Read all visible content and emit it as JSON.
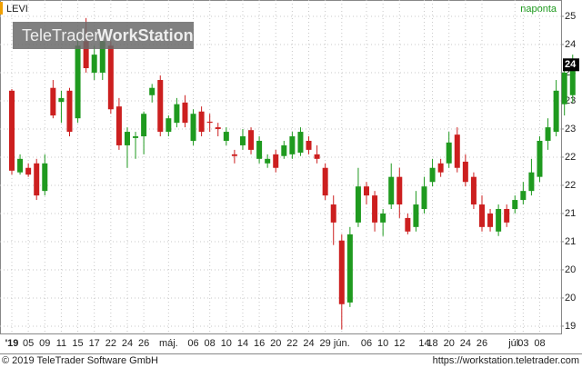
{
  "chart_data": {
    "type": "candlestick",
    "symbol": "LEVI",
    "period": "naponta",
    "watermark": [
      "TeleTrader",
      "WorkStation"
    ],
    "footer_left": "© 2019 TeleTrader Software GmbH",
    "footer_right": "https://workstation.teletrader.com",
    "categories": [
      "'19",
      null,
      "05",
      null,
      "09",
      null,
      "11",
      null,
      "15",
      null,
      "17",
      null,
      "22",
      null,
      "24",
      null,
      "26",
      null,
      null,
      "máj.",
      null,
      null,
      "06",
      null,
      "08",
      null,
      "10",
      null,
      "14",
      null,
      "16",
      null,
      "20",
      null,
      "22",
      null,
      "24",
      null,
      "29",
      null,
      "jún.",
      null,
      null,
      "06",
      null,
      "10",
      null,
      "12",
      null,
      null,
      "14",
      "18",
      null,
      "20",
      null,
      "24",
      null,
      "26",
      null,
      null,
      null,
      "júl.",
      "03",
      null,
      "08",
      null,
      null,
      null,
      null
    ],
    "open": [
      23.43,
      21.98,
      22.06,
      22.14,
      21.65,
      23.48,
      23.23,
      23.43,
      22.94,
      24.31,
      23.75,
      23.75,
      24.23,
      23.15,
      22.46,
      22.59,
      22.62,
      23.35,
      23.62,
      22.7,
      22.86,
      23.22,
      22.54,
      23.06,
      22.88,
      22.78,
      22.54,
      22.3,
      22.46,
      22.73,
      22.22,
      22.14,
      22.3,
      22.27,
      22.3,
      22.33,
      22.54,
      22.3,
      22.06,
      21.41,
      20.77,
      19.67,
      21.09,
      21.73,
      21.57,
      21.09,
      21.41,
      21.9,
      21.17,
      21.01,
      21.33,
      21.81,
      22.14,
      22.14,
      22.65,
      22.17,
      21.9,
      21.41,
      21.25,
      20.93,
      21.33,
      21.33,
      21.49,
      21.65,
      21.9,
      22.54,
      22.7,
      23.19,
      23.35
    ],
    "high": [
      23.46,
      22.3,
      22.14,
      22.22,
      22.3,
      23.62,
      23.43,
      23.48,
      24.4,
      24.72,
      24.23,
      24.4,
      24.31,
      23.3,
      22.78,
      22.7,
      23.06,
      23.55,
      23.7,
      22.99,
      23.3,
      23.35,
      23.1,
      23.15,
      23.02,
      22.86,
      22.78,
      22.38,
      22.75,
      22.78,
      22.62,
      22.3,
      22.38,
      22.54,
      22.7,
      22.78,
      22.62,
      22.46,
      22.14,
      21.57,
      20.88,
      21.01,
      22.06,
      21.81,
      21.65,
      21.33,
      22.14,
      22.06,
      21.25,
      21.65,
      21.9,
      22.22,
      22.22,
      22.7,
      22.78,
      22.3,
      21.98,
      21.57,
      21.33,
      21.41,
      21.41,
      21.57,
      21.81,
      22.22,
      22.62,
      22.94,
      23.62,
      23.83,
      24.07
    ],
    "low": [
      21.94,
      21.94,
      21.9,
      21.49,
      21.57,
      22.94,
      22.86,
      22.62,
      22.86,
      23.75,
      23.62,
      23.62,
      23.02,
      22.38,
      22.06,
      22.22,
      22.3,
      23.22,
      22.62,
      22.62,
      22.78,
      22.78,
      22.46,
      22.62,
      22.7,
      22.62,
      22.46,
      22.14,
      22.38,
      22.3,
      22.14,
      22.06,
      21.98,
      22.22,
      22.22,
      22.27,
      22.3,
      22.14,
      21.49,
      20.69,
      19.19,
      19.59,
      21.01,
      21.41,
      20.93,
      20.85,
      21.33,
      21.17,
      20.88,
      20.93,
      21.25,
      21.73,
      21.9,
      22.06,
      21.98,
      21.73,
      21.33,
      20.93,
      20.93,
      20.85,
      21.01,
      21.25,
      21.41,
      21.57,
      21.81,
      22.38,
      22.62,
      22.99,
      23.22
    ],
    "close": [
      22.01,
      22.22,
      21.94,
      21.57,
      22.14,
      22.99,
      23.3,
      22.7,
      24.23,
      23.83,
      24.07,
      24.31,
      23.1,
      22.46,
      22.7,
      22.62,
      23.02,
      23.48,
      22.7,
      22.94,
      23.19,
      22.86,
      23.02,
      22.7,
      22.86,
      22.75,
      22.7,
      22.27,
      22.62,
      22.38,
      22.54,
      22.22,
      22.06,
      22.46,
      22.62,
      22.7,
      22.38,
      22.22,
      21.57,
      21.09,
      19.64,
      20.88,
      21.73,
      21.57,
      21.09,
      21.25,
      21.9,
      21.41,
      20.93,
      21.41,
      21.73,
      22.06,
      21.98,
      22.51,
      22.06,
      21.81,
      21.41,
      21.01,
      21.01,
      21.33,
      21.09,
      21.49,
      21.65,
      21.98,
      22.54,
      22.78,
      23.43,
      23.75,
      23.89
    ],
    "up_color": "#1f9a1f",
    "down_color": "#cc1f1f",
    "last_price": 23.89,
    "last_price_label": "24",
    "ylim": [
      19.12,
      25.04
    ],
    "yticks": [
      {
        "value": 19.25,
        "label": "19"
      },
      {
        "value": 19.75,
        "label": "20"
      },
      {
        "value": 20.25,
        "label": "20"
      },
      {
        "value": 20.75,
        "label": "21"
      },
      {
        "value": 21.25,
        "label": "21"
      },
      {
        "value": 21.75,
        "label": "22"
      },
      {
        "value": 22.25,
        "label": "22"
      },
      {
        "value": 22.75,
        "label": "23"
      },
      {
        "value": 23.25,
        "label": "23"
      },
      {
        "value": 23.75,
        "label": "24"
      },
      {
        "value": 24.25,
        "label": "24"
      },
      {
        "value": 24.75,
        "label": "25"
      }
    ],
    "grid": true
  }
}
